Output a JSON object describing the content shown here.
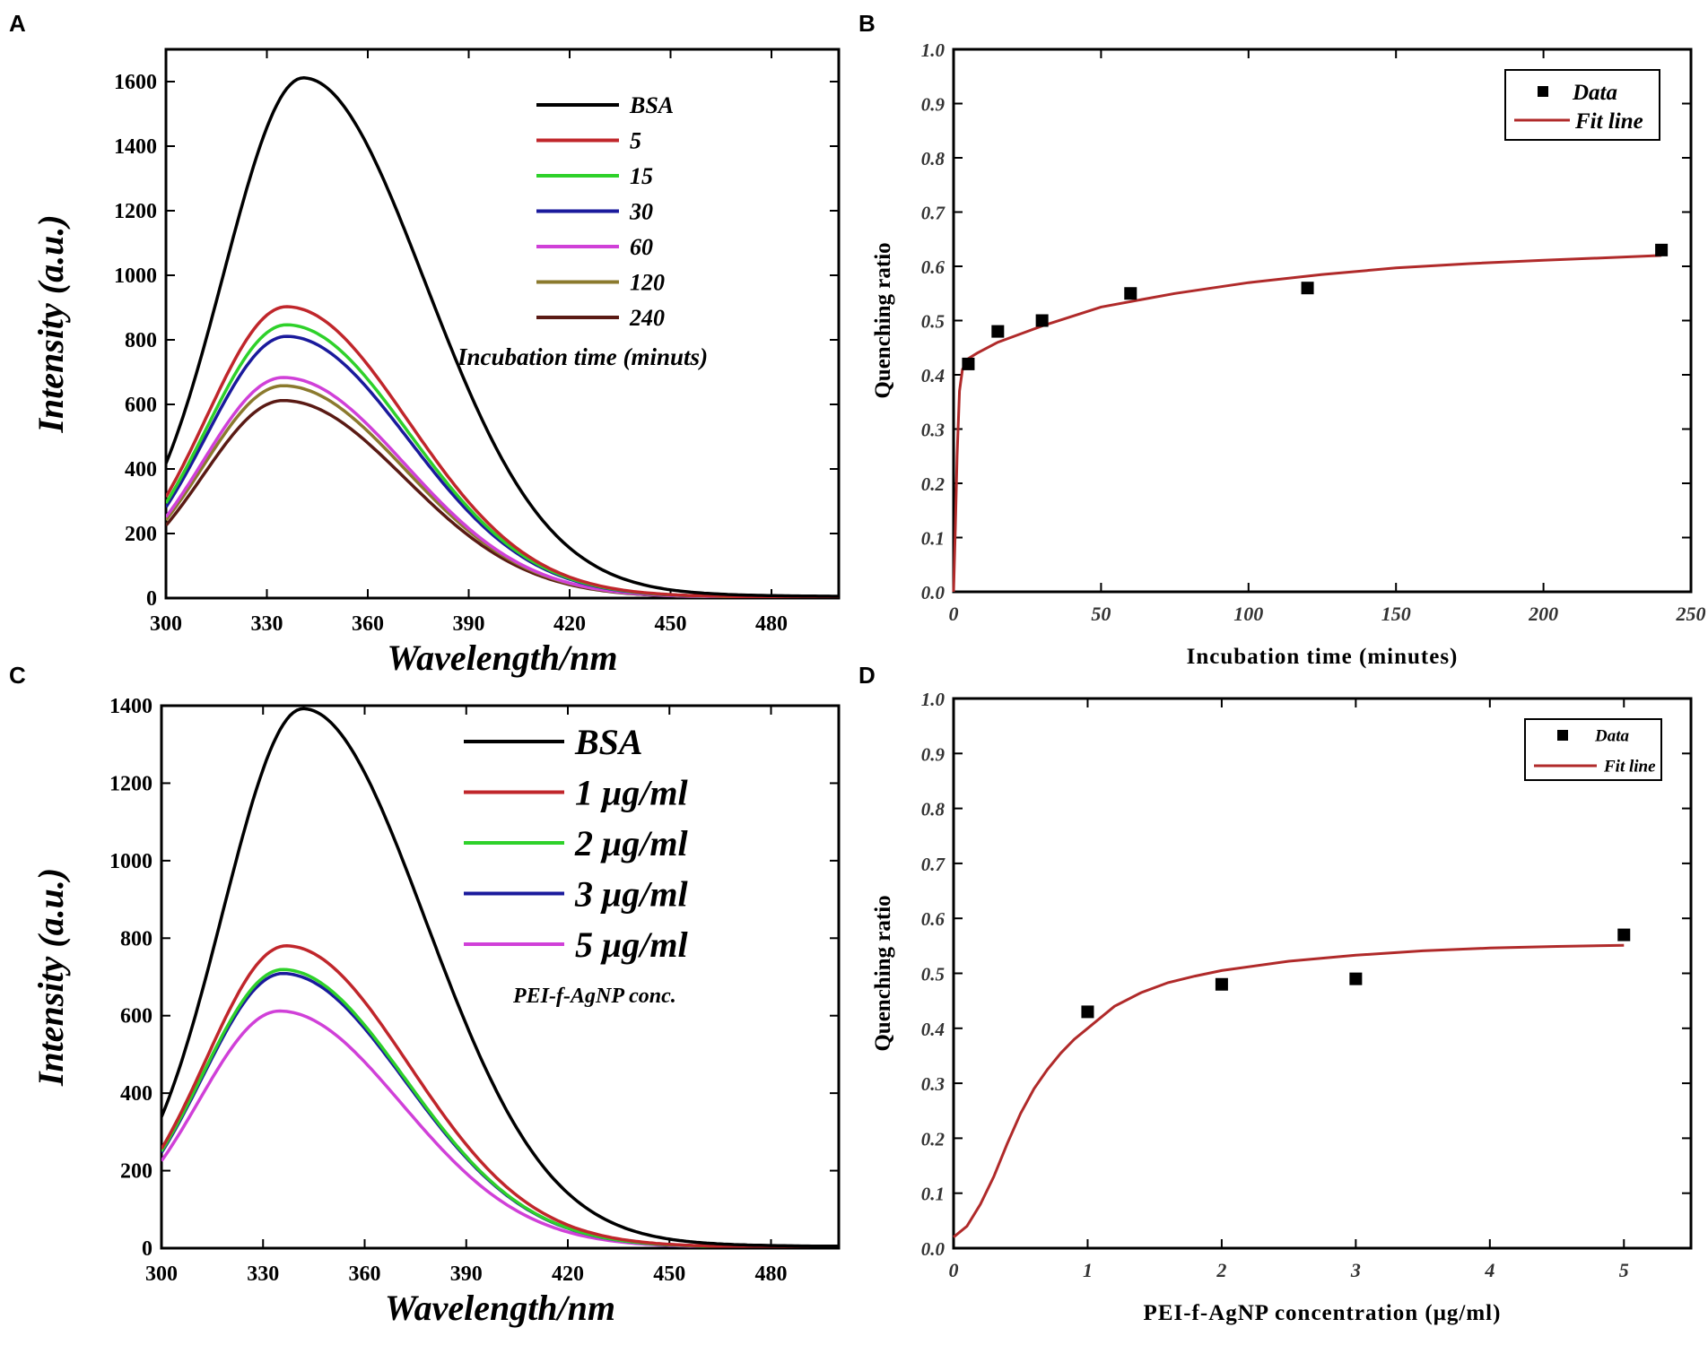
{
  "chart_data": [
    {
      "panel": "A",
      "type": "line",
      "title": "",
      "xlabel": "Wavelength/nm",
      "ylabel": "Intensity (a.u.)",
      "xlim": [
        300,
        500
      ],
      "ylim": [
        0,
        1700
      ],
      "xticks": [
        300,
        330,
        360,
        390,
        420,
        450,
        480
      ],
      "yticks": [
        0,
        200,
        400,
        600,
        800,
        1000,
        1200,
        1400,
        1600
      ],
      "legend_title": "Incubation time (minuts)",
      "legend_position": "top-right",
      "series": [
        {
          "name": "BSA",
          "color": "#000000",
          "peak": 1580,
          "center": 341
        },
        {
          "name": "5",
          "color": "#c0262b",
          "peak": 885,
          "center": 336
        },
        {
          "name": "15",
          "color": "#2ed12a",
          "peak": 830,
          "center": 336
        },
        {
          "name": "30",
          "color": "#1a1a9c",
          "peak": 795,
          "center": 336
        },
        {
          "name": "60",
          "color": "#d040d8",
          "peak": 670,
          "center": 335
        },
        {
          "name": "120",
          "color": "#8b7a2e",
          "peak": 645,
          "center": 335
        },
        {
          "name": "240",
          "color": "#5a1a14",
          "peak": 600,
          "center": 335
        }
      ]
    },
    {
      "panel": "B",
      "type": "scatter",
      "title": "",
      "xlabel": "Incubation time (minutes)",
      "ylabel": "Quenching ratio",
      "xlim": [
        0,
        250
      ],
      "ylim": [
        0,
        1.0
      ],
      "xticks": [
        0,
        50,
        100,
        150,
        200,
        250
      ],
      "yticks": [
        0.0,
        0.1,
        0.2,
        0.3,
        0.4,
        0.5,
        0.6,
        0.7,
        0.8,
        0.9,
        1.0
      ],
      "legend_position": "top-right",
      "data_label": "Data",
      "fit_label": "Fit line",
      "fit_color": "#b02a2a",
      "x": [
        5,
        15,
        30,
        60,
        120,
        240
      ],
      "y": [
        0.42,
        0.48,
        0.5,
        0.55,
        0.56,
        0.63
      ],
      "fit": {
        "x": [
          0,
          0.6,
          1.2,
          2,
          3,
          4,
          5,
          8,
          15,
          30,
          50,
          75,
          100,
          125,
          150,
          175,
          200,
          240
        ],
        "y": [
          0.0,
          0.12,
          0.25,
          0.37,
          0.41,
          0.42,
          0.43,
          0.44,
          0.46,
          0.49,
          0.525,
          0.55,
          0.57,
          0.585,
          0.597,
          0.605,
          0.611,
          0.62
        ]
      }
    },
    {
      "panel": "C",
      "type": "line",
      "title": "",
      "xlabel": "Wavelength/nm",
      "ylabel": "Intensity (a.u.)",
      "xlim": [
        300,
        500
      ],
      "ylim": [
        0,
        1400
      ],
      "xticks": [
        300,
        330,
        360,
        390,
        420,
        450,
        480
      ],
      "yticks": [
        0,
        200,
        400,
        600,
        800,
        1000,
        1200,
        1400
      ],
      "legend_title": "PEI-f-AgNP conc.",
      "legend_position": "top-right",
      "series": [
        {
          "name": "BSA",
          "color": "#000000",
          "peak": 1365,
          "center": 342
        },
        {
          "name": "1 μg/ml",
          "color": "#c0262b",
          "peak": 765,
          "center": 337
        },
        {
          "name": "2 μg/ml",
          "color": "#2ed12a",
          "peak": 705,
          "center": 336
        },
        {
          "name": "3 μg/ml",
          "color": "#1a1a9c",
          "peak": 695,
          "center": 336
        },
        {
          "name": "5 μg/ml",
          "color": "#d040d8",
          "peak": 600,
          "center": 335
        }
      ]
    },
    {
      "panel": "D",
      "type": "scatter",
      "title": "",
      "xlabel": "PEI-f-AgNP concentration (μg/ml)",
      "ylabel": "Quenching ratio",
      "xlim": [
        0,
        5.5
      ],
      "ylim": [
        0,
        1.0
      ],
      "xticks": [
        0,
        1,
        2,
        3,
        4,
        5
      ],
      "yticks": [
        0.0,
        0.1,
        0.2,
        0.3,
        0.4,
        0.5,
        0.6,
        0.7,
        0.8,
        0.9,
        1.0
      ],
      "legend_position": "top-right",
      "data_label": "Data",
      "fit_label": "Fit line",
      "fit_color": "#b02a2a",
      "x": [
        1,
        2,
        3,
        5
      ],
      "y": [
        0.43,
        0.48,
        0.49,
        0.57
      ],
      "fit": {
        "x": [
          0,
          0.1,
          0.2,
          0.3,
          0.4,
          0.5,
          0.6,
          0.7,
          0.8,
          0.9,
          1.0,
          1.2,
          1.4,
          1.6,
          1.8,
          2.0,
          2.5,
          3.0,
          3.5,
          4.0,
          4.5,
          5.0
        ],
        "y": [
          0.02,
          0.04,
          0.08,
          0.13,
          0.19,
          0.245,
          0.29,
          0.325,
          0.355,
          0.38,
          0.4,
          0.44,
          0.465,
          0.483,
          0.495,
          0.505,
          0.522,
          0.533,
          0.541,
          0.546,
          0.549,
          0.551
        ]
      }
    }
  ]
}
